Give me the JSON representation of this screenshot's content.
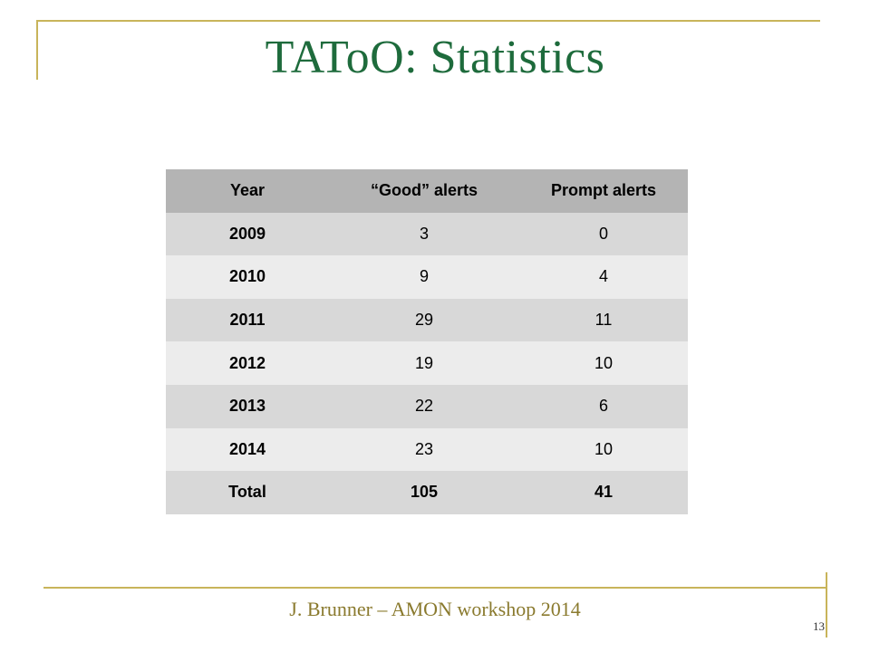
{
  "slide": {
    "title": "TAToO: Statistics",
    "footer": "J. Brunner – AMON workshop 2014",
    "page_number": "13"
  },
  "table": {
    "headers": [
      "Year",
      "“Good” alerts",
      "Prompt alerts"
    ],
    "rows": [
      [
        "2009",
        "3",
        "0"
      ],
      [
        "2010",
        "9",
        "4"
      ],
      [
        "2011",
        "29",
        "11"
      ],
      [
        "2012",
        "19",
        "10"
      ],
      [
        "2013",
        "22",
        "6"
      ],
      [
        "2014",
        "23",
        "10"
      ],
      [
        "Total",
        "105",
        "41"
      ]
    ]
  },
  "colors": {
    "title": "#1e6b3c",
    "frame": "#c8b45a",
    "footer": "#8a7a2e",
    "header_bg": "#b4b4b4",
    "row_dark": "#d8d8d8",
    "row_light": "#ececec"
  }
}
